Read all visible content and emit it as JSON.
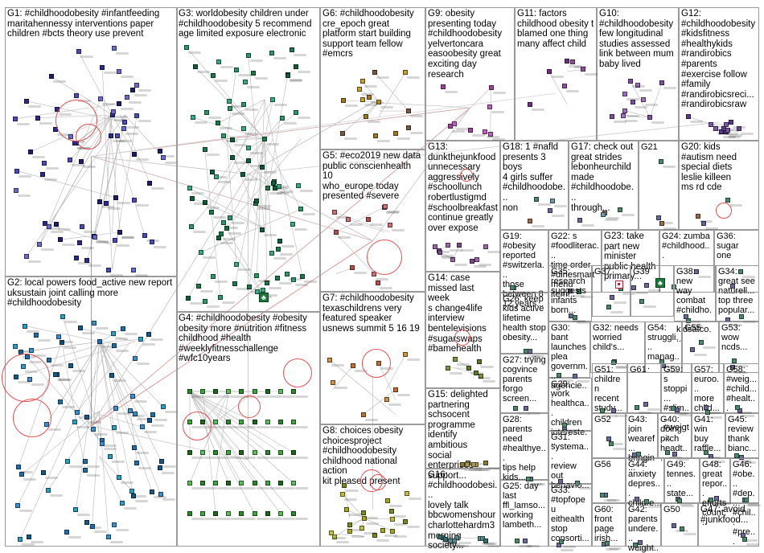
{
  "graph": {
    "groups": [
      {
        "id": "G1",
        "label": "G1: #childhoodobesity #infantfeeding\nmaritahennessy interventions paper\nchildren #bcts theory use prevent"
      },
      {
        "id": "G2",
        "label": "G2: local powers food_active new report\nuksustain joint calling more\n#childhoodobesity"
      },
      {
        "id": "G3",
        "label": "G3: worldobesity children under\n#childhoodobesity 5 recommend\nage limited exposure electronic"
      },
      {
        "id": "G4",
        "label": "G4: #childhoodobesity #obesity\nobesity more #nutrition #fitness\nchildhood #health\n#weeklyfitnesschallenge\n#wfc10years"
      },
      {
        "id": "G5",
        "label": "G5: #eco2019 new data\npublic conscienhealth 10\nwho_europe today\npresented #severe"
      },
      {
        "id": "G6",
        "label": "G6: #childhoodobesity\ncre_epoch great\nplatform start building\nsupport team fellow\n#emcrs"
      },
      {
        "id": "G7",
        "label": "G7: #childhoodobesity\ntexaschildrens very\nfeatured speaker\nusnews summit 5 16 19"
      },
      {
        "id": "G8",
        "label": "G8: choices obesity\nchoicesproject\n#childhoodobesity\nchildhood national action\nkit pleased present"
      },
      {
        "id": "G9",
        "label": "G9: obesity\npresenting today\n#childhoodobesity\nyelvertoncara\neasoobesity great\nexciting day\nresearch"
      },
      {
        "id": "G10",
        "label": "G10:\n#childhoodobesity\nfew longitudinal\nstudies assessed\nlink between mum\nbaby lived"
      },
      {
        "id": "G11",
        "label": "G11: factors\nchildhood obesity t\nblamed one thing\nmany affect child"
      },
      {
        "id": "G12",
        "label": "G12:\n#childhoodobesity\n#kidsfitness\n#healthykids\n#randirobics\n#parents\n#exercise follow\n#family\n#randirobicsreci...\n#randirobicsraw"
      },
      {
        "id": "G13",
        "label": "G13:\ndunkthejunkfood\nunnecessary\naggressively\n#schoollunch\nrobertlustigmd\n#schoolbreakfast\ncontinue greatly\nover expose"
      },
      {
        "id": "G14",
        "label": "G14: case\nmissed last week\ns change4life\ninterview\nbentelevisions\n#sugarswaps\n#bamehealth"
      },
      {
        "id": "G15",
        "label": "G15: delighted\npartnering\nschsocent\nprogramme\nidentify ambitious\nsocial enterprises\nsupport..."
      },
      {
        "id": "G16",
        "label": "G16:\n#childhoodobesi...\nlovely talk\nbbcwomenshour\ncharlottehardm3\nmorning society..."
      },
      {
        "id": "G17",
        "label": "G17: check out\ngreat strides\nlebonheurchild\nmade\n#childhoodobe...\nthrough..."
      },
      {
        "id": "G18",
        "label": "G18: 1 #nafld\npresents 3 boys\n4 girls suffer\n#childhoodobe...\nnon"
      },
      {
        "id": "G19",
        "label": "G19:\n#obesity\nreported\n#switzerla...\nthose\nbetween 8\n12 years..."
      },
      {
        "id": "G20",
        "label": "G20: kids\n#autism need\nspecial diets\nleslie killeen\nms rd cde"
      },
      {
        "id": "G21",
        "label": "G21"
      },
      {
        "id": "G22",
        "label": "G22: s\n#foodliterac...\ntime order\n#dinesmart\nmenu item..."
      },
      {
        "id": "G23",
        "label": "G23: take\npart new\nminister\npublic health\nprimary..."
      },
      {
        "id": "G24",
        "label": "G24: zumba\n#childhood..."
      },
      {
        "id": "G25",
        "label": "G25: day\nlast\nffl_lamso...\nworking\nlambeth..."
      },
      {
        "id": "G26",
        "label": "G26: keep\nkids active\nlifetime\nhealth stop\nobesity..."
      },
      {
        "id": "G27",
        "label": "G27: trying\ncogvince\nparents\nforgo\nscreen..."
      },
      {
        "id": "G28",
        "label": "G28:\nparents\nneed\n#healthye...\ntips help\nkids..."
      },
      {
        "id": "G29",
        "label": "G29:\nwork\nhealthca...\nchildren\nintereste..."
      },
      {
        "id": "G30",
        "label": "G30: bant\nlaunches\nplea\ngovernm...\nagencie..."
      },
      {
        "id": "G31",
        "label": "G31:\nsystema...\nreview\nout\nbehavio..."
      },
      {
        "id": "G32",
        "label": "G32: needs\nworried\nchild's..."
      },
      {
        "id": "G33",
        "label": "G33:\n#topfopeu\neithealth\nstop\nconsorti..."
      },
      {
        "id": "G34",
        "label": "G34:\ngreat see\nnaturell...\ntop three\npopular..."
      },
      {
        "id": "G35",
        "label": "G35:\nresearch\nsuggests\ninfants\nborn..."
      },
      {
        "id": "G36",
        "label": "G36:\nsugar\none"
      },
      {
        "id": "G37",
        "label": "G37"
      },
      {
        "id": "G38",
        "label": "G38: new\nway\ncombat\n#childho...\nkidsatco..."
      },
      {
        "id": "G39",
        "label": "G39"
      },
      {
        "id": "G40",
        "label": "G40:\ndoing\npitch\nheadt..."
      },
      {
        "id": "G41",
        "label": "G41:\nwin\nbuy\nraffle..."
      },
      {
        "id": "G42",
        "label": "G42:\nparents\nundere...\nweight..."
      },
      {
        "id": "G43",
        "label": "G43:\njoin\nwearef...\nbringin..."
      },
      {
        "id": "G44",
        "label": "G44:\nanxiety\ndepres...\nchildre..."
      },
      {
        "id": "G45",
        "label": "G45:\nreview\nthank\nbianc..."
      },
      {
        "id": "G46",
        "label": "G46:\n#obe...\n#dep...\n#chil...\n#pre..."
      },
      {
        "id": "G47",
        "label": "G47: avoid\n#junkfood..."
      },
      {
        "id": "G48",
        "label": "G48:\ngreat\nrepor...\nefforts\ncount..."
      },
      {
        "id": "G49",
        "label": "G49:\ntennes...\nstate..."
      },
      {
        "id": "G50",
        "label": "G50"
      },
      {
        "id": "G51",
        "label": "G51:\nchildren\nrecent\nstudy..."
      },
      {
        "id": "G52",
        "label": "G52"
      },
      {
        "id": "G53",
        "label": "G53:\nwow\nncds..."
      },
      {
        "id": "G54",
        "label": "G54:\nstruggli...\nmanag..."
      },
      {
        "id": "G55",
        "label": "G55"
      },
      {
        "id": "G56",
        "label": "G56"
      },
      {
        "id": "G57",
        "label": "G57:\neuroo...\nmore\nchild..."
      },
      {
        "id": "G58",
        "label": "G58:\n#weig...\n#child...\n#healt..."
      },
      {
        "id": "G59",
        "label": "G59: s\nstoppi...\n#slim...\n#weigt..."
      },
      {
        "id": "G60",
        "label": "G60:\nfront\npage\nirish..."
      },
      {
        "id": "G61",
        "label": "G61"
      }
    ]
  }
}
